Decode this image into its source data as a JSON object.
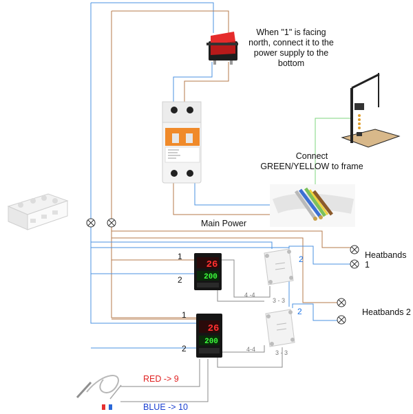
{
  "labels": {
    "switch_note": "When \"1\" is facing north, connect it to the power supply to the bottom",
    "ground_note": "Connect GREEN/YELLOW to frame",
    "main_power": "Main Power",
    "heatbands_1": "Heatbands 1",
    "heatbands_2": "Heatbands 2",
    "red_9": "RED -> 9",
    "blue_10": "BLUE -> 10"
  },
  "controller_1": {
    "pv": "26",
    "sv": "200",
    "pin_1": "1",
    "pin_2": "2",
    "link": "4 -4"
  },
  "controller_2": {
    "pv": "26",
    "sv": "200",
    "pin_1": "1",
    "pin_2": "2",
    "link": "4-4"
  },
  "ssr_1": {
    "out": "2",
    "link": "3 - 3"
  },
  "ssr_2": {
    "out": "2",
    "link": "3 - 3"
  },
  "colors": {
    "blue_wire": "#4a90e2",
    "brown_wire": "#b5784a",
    "gray_wire": "#8a8a8a",
    "green_wire": "#7cd67c"
  }
}
